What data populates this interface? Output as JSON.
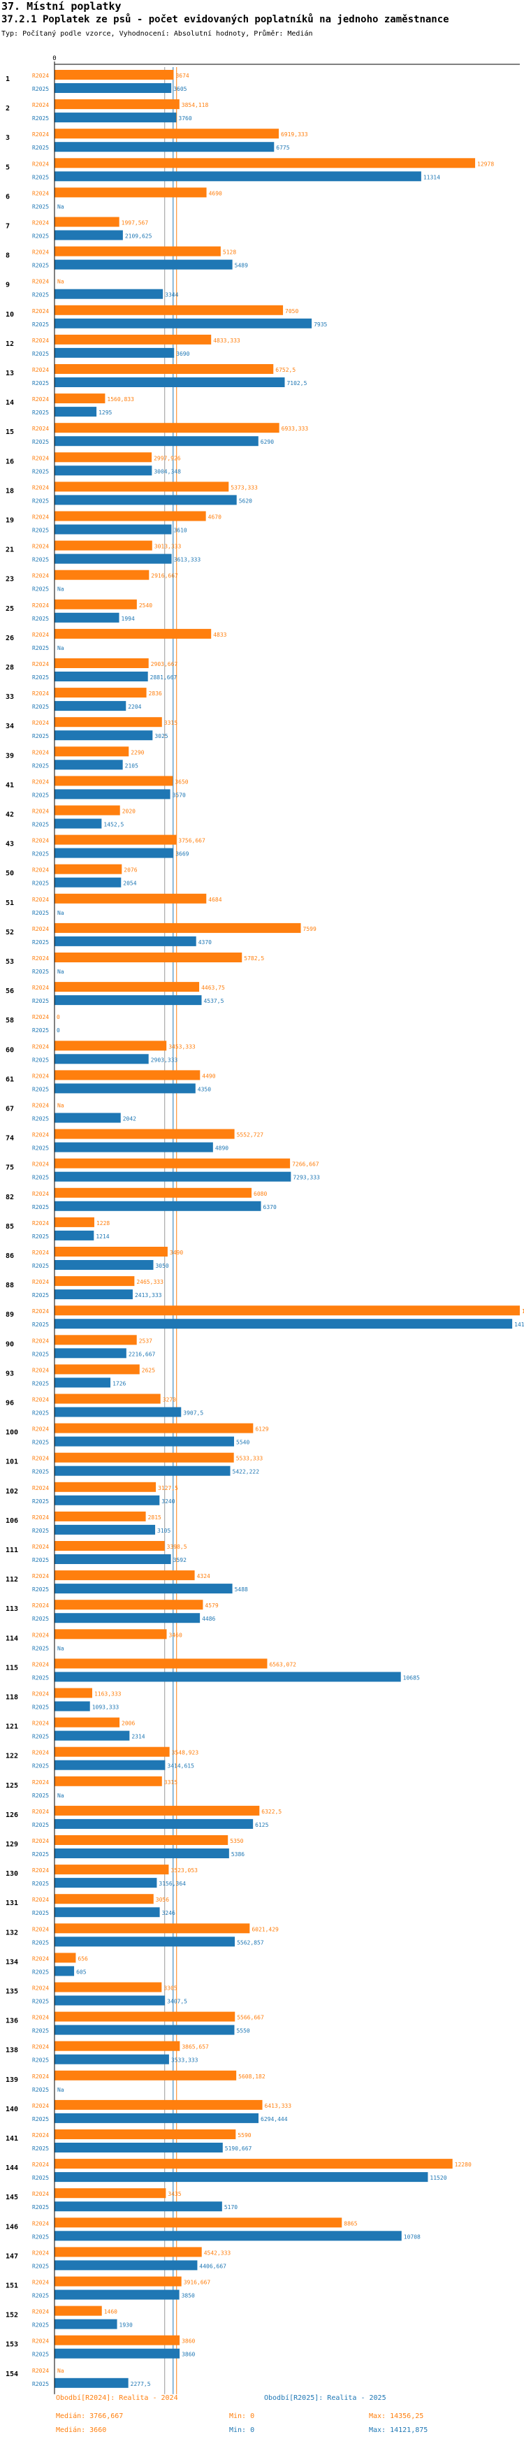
{
  "header": {
    "section": "37. Místní poplatky",
    "title": "37.2.1 Poplatek ze psů - počet evidovaných poplatníků na jednoho zaměstnance",
    "subtitle": "Typ: Počítaný podle vzorce, Vyhodnocení: Absolutní hodnoty, Průměr: Medián"
  },
  "colors": {
    "r2024": "#ff7f0e",
    "r2025": "#1f77b4"
  },
  "chart_data": {
    "type": "bar",
    "orientation": "horizontal",
    "title": "37.2.1 Poplatek ze psů - počet evidovaných poplatníků na jednoho zaměstnance",
    "axis_zero_label": "0",
    "xlim": [
      0,
      14356.25
    ],
    "series": [
      {
        "name": "R2024",
        "color": "#ff7f0e"
      },
      {
        "name": "R2025",
        "color": "#1f77b4"
      }
    ],
    "categories": [
      "1",
      "2",
      "3",
      "5",
      "6",
      "7",
      "8",
      "9",
      "10",
      "12",
      "13",
      "14",
      "15",
      "16",
      "18",
      "19",
      "21",
      "23",
      "25",
      "26",
      "28",
      "33",
      "34",
      "39",
      "41",
      "42",
      "43",
      "50",
      "51",
      "52",
      "53",
      "56",
      "58",
      "60",
      "61",
      "67",
      "74",
      "75",
      "82",
      "85",
      "86",
      "88",
      "89",
      "90",
      "93",
      "96",
      "100",
      "101",
      "102",
      "106",
      "111",
      "112",
      "113",
      "114",
      "115",
      "118",
      "121",
      "122",
      "125",
      "126",
      "129",
      "130",
      "131",
      "132",
      "134",
      "135",
      "136",
      "138",
      "139",
      "140",
      "141",
      "144",
      "145",
      "146",
      "147",
      "151",
      "152",
      "153",
      "154"
    ],
    "values_2024": [
      3674,
      3854.118,
      6919.333,
      12978,
      4690,
      1997.567,
      5128,
      null,
      7050,
      4833.333,
      6752.5,
      1560.833,
      6933.333,
      2997.926,
      5373.333,
      4670,
      3013.333,
      2916.667,
      2540,
      4833,
      2903.667,
      2836,
      3315,
      2290,
      3650,
      2020,
      3756.667,
      2076,
      4684,
      7599,
      5782.5,
      4463.75,
      0,
      3453.333,
      4490,
      null,
      5552.727,
      7266.667,
      6080,
      1228,
      3490,
      2465.333,
      14356.25,
      2537,
      2625,
      3270,
      6129,
      5533.333,
      3127.5,
      2815,
      3398.5,
      4324,
      4579,
      3460,
      6563.072,
      1163.333,
      2006,
      3548.923,
      3315,
      6322.5,
      5350,
      3523.053,
      3056,
      6021.429,
      656,
      3305,
      5566.667,
      3865.657,
      5608.182,
      6413.333,
      5590,
      12280,
      3435,
      8865,
      4542.333,
      3916.667,
      1460,
      3860,
      null
    ],
    "values_2025": [
      3605,
      3760,
      6775,
      11314,
      null,
      2109.625,
      5489,
      3344,
      7935,
      3690,
      7102.5,
      1295,
      6290,
      3004.348,
      5620,
      3610,
      3613.333,
      null,
      1994,
      null,
      2881.667,
      2204,
      3025,
      2105,
      3570,
      1452.5,
      3669,
      2054,
      null,
      4370,
      null,
      4537.5,
      0,
      2903.333,
      4350,
      2042,
      4890,
      7293.333,
      6370,
      1214,
      3050,
      2413.333,
      14121.875,
      2216.667,
      1726,
      3907.5,
      5540,
      5422.222,
      3240,
      3105,
      3592,
      5488,
      4486,
      null,
      10685,
      1093.333,
      2314,
      3414.615,
      null,
      6125,
      5386,
      3156.364,
      3246,
      5562.857,
      605,
      3407.5,
      5550,
      3533.333,
      null,
      6294.444,
      5190.667,
      11520,
      5170,
      10708,
      4406.667,
      3850,
      1930,
      3860,
      2277.5
    ],
    "x_axis_text": "Na"
  },
  "legend": {
    "r2024": {
      "label": "Obodbí[R2024]: Realita - 2024",
      "median": "Medián: 3766,667",
      "min": "Min: 0",
      "max": "Max: 14356,25"
    },
    "r2025": {
      "label": "Obodbí[R2025]: Realita - 2025",
      "median": "Medián: 3660",
      "min": "Min: 0",
      "max": "Max: 14121,875"
    }
  }
}
